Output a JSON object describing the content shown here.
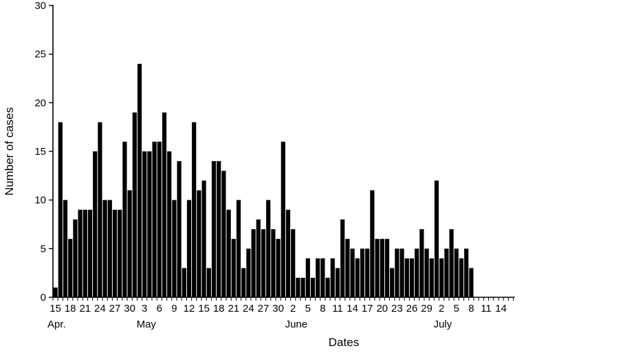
{
  "chart_data": {
    "type": "bar",
    "xlabel": "Dates",
    "ylabel": "Number of cases",
    "ylim": [
      0,
      30
    ],
    "yticks": [
      "0",
      "5",
      "10",
      "15",
      "20",
      "25",
      "30"
    ],
    "grid": false,
    "legend": "none",
    "bar_color": "#000000",
    "categories": [
      "Apr 15",
      "Apr 16",
      "Apr 17",
      "Apr 18",
      "Apr 19",
      "Apr 20",
      "Apr 21",
      "Apr 22",
      "Apr 23",
      "Apr 24",
      "Apr 25",
      "Apr 26",
      "Apr 27",
      "Apr 28",
      "Apr 29",
      "Apr 30",
      "May 1",
      "May 2",
      "May 3",
      "May 4",
      "May 5",
      "May 6",
      "May 7",
      "May 8",
      "May 9",
      "May 10",
      "May 11",
      "May 12",
      "May 13",
      "May 14",
      "May 15",
      "May 16",
      "May 17",
      "May 18",
      "May 19",
      "May 20",
      "May 21",
      "May 22",
      "May 23",
      "May 24",
      "May 25",
      "May 26",
      "May 27",
      "May 28",
      "May 29",
      "May 30",
      "May 31",
      "Jun 1",
      "Jun 2",
      "Jun 3",
      "Jun 4",
      "Jun 5",
      "Jun 6",
      "Jun 7",
      "Jun 8",
      "Jun 9",
      "Jun 10",
      "Jun 11",
      "Jun 12",
      "Jun 13",
      "Jun 14",
      "Jun 15",
      "Jun 16",
      "Jun 17",
      "Jun 18",
      "Jun 19",
      "Jun 20",
      "Jun 21",
      "Jun 22",
      "Jun 23",
      "Jun 24",
      "Jun 25",
      "Jun 26",
      "Jun 27",
      "Jun 28",
      "Jun 29",
      "Jun 30",
      "Jul 1",
      "Jul 2",
      "Jul 3",
      "Jul 4",
      "Jul 5",
      "Jul 6",
      "Jul 7",
      "Jul 8",
      "Jul 9",
      "Jul 10",
      "Jul 11",
      "Jul 12",
      "Jul 13",
      "Jul 14",
      "Jul 15",
      "Jul 16"
    ],
    "values": [
      1,
      18,
      10,
      6,
      8,
      9,
      9,
      9,
      15,
      18,
      10,
      10,
      9,
      9,
      16,
      11,
      19,
      24,
      15,
      15,
      16,
      16,
      19,
      15,
      10,
      14,
      3,
      10,
      18,
      11,
      12,
      3,
      14,
      14,
      13,
      9,
      6,
      10,
      3,
      5,
      7,
      8,
      7,
      10,
      7,
      6,
      16,
      9,
      7,
      2,
      2,
      4,
      2,
      4,
      4,
      2,
      4,
      3,
      8,
      6,
      5,
      4,
      5,
      5,
      11,
      6,
      6,
      6,
      3,
      5,
      5,
      4,
      4,
      5,
      7,
      5,
      4,
      12,
      4,
      5,
      7,
      5,
      4,
      5,
      3,
      0,
      0,
      0,
      0,
      0,
      0,
      0,
      0
    ],
    "x_tick_labels": [
      {
        "day": 0,
        "label": "15"
      },
      {
        "day": 3,
        "label": "18"
      },
      {
        "day": 6,
        "label": "21"
      },
      {
        "day": 9,
        "label": "24"
      },
      {
        "day": 12,
        "label": "27"
      },
      {
        "day": 15,
        "label": "30"
      },
      {
        "day": 18,
        "label": "3"
      },
      {
        "day": 21,
        "label": "6"
      },
      {
        "day": 24,
        "label": "9"
      },
      {
        "day": 27,
        "label": "12"
      },
      {
        "day": 30,
        "label": "15"
      },
      {
        "day": 33,
        "label": "18"
      },
      {
        "day": 36,
        "label": "21"
      },
      {
        "day": 39,
        "label": "24"
      },
      {
        "day": 42,
        "label": "27"
      },
      {
        "day": 45,
        "label": "30"
      },
      {
        "day": 48,
        "label": "2"
      },
      {
        "day": 51,
        "label": "5"
      },
      {
        "day": 54,
        "label": "8"
      },
      {
        "day": 57,
        "label": "11"
      },
      {
        "day": 60,
        "label": "14"
      },
      {
        "day": 63,
        "label": "17"
      },
      {
        "day": 66,
        "label": "20"
      },
      {
        "day": 69,
        "label": "23"
      },
      {
        "day": 72,
        "label": "26"
      },
      {
        "day": 75,
        "label": "29"
      },
      {
        "day": 78,
        "label": "2"
      },
      {
        "day": 81,
        "label": "5"
      },
      {
        "day": 84,
        "label": "8"
      },
      {
        "day": 87,
        "label": "11"
      },
      {
        "day": 90,
        "label": "14"
      }
    ],
    "month_labels": [
      {
        "day": 0,
        "label": "Apr."
      },
      {
        "day": 18,
        "label": "May"
      },
      {
        "day": 48,
        "label": "June"
      },
      {
        "day": 78,
        "label": "July"
      }
    ]
  }
}
